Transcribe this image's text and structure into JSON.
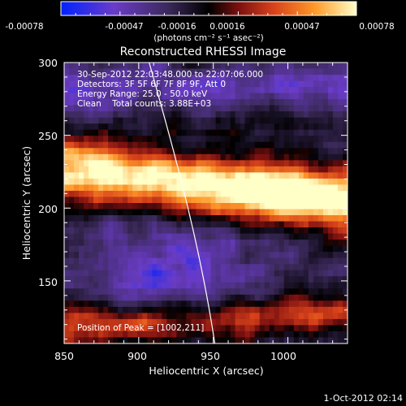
{
  "colorbar": {
    "ticks": [
      "-0.00078",
      "-0.00047",
      "-0.00016",
      "0.00016",
      "0.00047",
      "0.00078"
    ],
    "unit_label": "(photons cm⁻² s⁻¹ asec⁻²)",
    "range": [
      -0.00078,
      0.00078
    ],
    "colors": [
      "#0022ff",
      "#6a3cc8",
      "#3c2a5c",
      "#000000",
      "#7a1010",
      "#d8421a",
      "#ff9a2a",
      "#ffffc8"
    ]
  },
  "chart_data": {
    "type": "heatmap",
    "title": "Reconstructed RHESSI Image",
    "xlabel": "Heliocentric X (arcsec)",
    "ylabel": "Heliocentric Y (arcsec)",
    "xlim": [
      850,
      1040
    ],
    "ylim": [
      107,
      300
    ],
    "x_ticks": [
      850,
      900,
      950,
      1000
    ],
    "y_ticks": [
      150,
      200,
      250,
      300
    ],
    "grid": false,
    "annotations": [
      "30-Sep-2012 22:03:48.000 to 22:07:06.000",
      "Detectors: 3F 5F 6F 7F 8F 9F, Att 0",
      "Energy Range: 25.0 - 50.0 keV",
      "Clean    Total counts: 3.88E+03"
    ],
    "peak_label": "Position of Peak = [1002,211]",
    "peak": [
      1002,
      211
    ],
    "limb_x_at_ymax": 907,
    "limb_x_at_ymin": 951
  },
  "timestamp": "1-Oct-2012 02:14"
}
